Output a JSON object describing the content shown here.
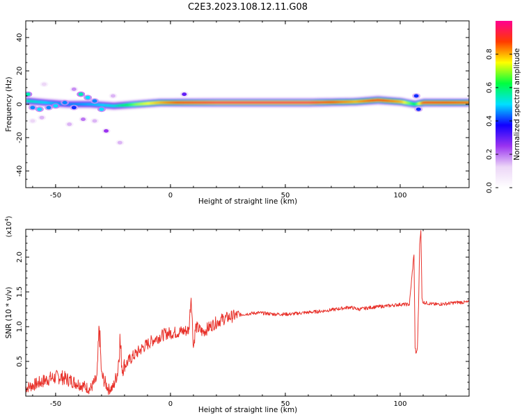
{
  "figure_title": "C2E3.2023.108.12.11.G08",
  "chart_data": [
    {
      "type": "heatmap",
      "xlabel": "Height of straight line (km)",
      "ylabel": "Frequency (Hz)",
      "xlim": [
        -63,
        130
      ],
      "ylim": [
        -50,
        50
      ],
      "x_ticks": [
        -50,
        0,
        50,
        100
      ],
      "y_ticks": [
        -40,
        -20,
        0,
        20,
        40
      ],
      "colorbar": {
        "label": "Normalized spectral amplitude",
        "range": [
          0,
          1
        ],
        "ticks": [
          0.0,
          0.2,
          0.4,
          0.6,
          0.8
        ],
        "colors": [
          "#ffffff",
          "#ecd6f7",
          "#9a33f0",
          "#1100ff",
          "#00e0ff",
          "#00ff40",
          "#ffff00",
          "#ff3b00",
          "#ff0090"
        ]
      },
      "ridge": [
        {
          "x": -63,
          "freq": 2,
          "amp": 0.55
        },
        {
          "x": -55,
          "freq": 1,
          "amp": 0.5
        },
        {
          "x": -45,
          "freq": 0,
          "amp": 0.45
        },
        {
          "x": -35,
          "freq": 0,
          "amp": 0.48
        },
        {
          "x": -25,
          "freq": -1,
          "amp": 0.52
        },
        {
          "x": -15,
          "freq": 0,
          "amp": 0.7
        },
        {
          "x": -5,
          "freq": 1,
          "amp": 0.8
        },
        {
          "x": 5,
          "freq": 1,
          "amp": 0.9
        },
        {
          "x": 20,
          "freq": 1,
          "amp": 0.95
        },
        {
          "x": 40,
          "freq": 1,
          "amp": 0.95
        },
        {
          "x": 60,
          "freq": 1,
          "amp": 0.95
        },
        {
          "x": 80,
          "freq": 1.5,
          "amp": 0.8
        },
        {
          "x": 90,
          "freq": 2.5,
          "amp": 0.9
        },
        {
          "x": 100,
          "freq": 1.5,
          "amp": 0.8
        },
        {
          "x": 106,
          "freq": 0,
          "amp": 0.6
        },
        {
          "x": 110,
          "freq": 1,
          "amp": 0.9
        },
        {
          "x": 130,
          "freq": 1,
          "amp": 0.85
        }
      ],
      "blobs": [
        {
          "x": -62,
          "freq": 6,
          "amp": 0.55
        },
        {
          "x": -60,
          "freq": -2,
          "amp": 0.45
        },
        {
          "x": -57,
          "freq": -3,
          "amp": 0.5
        },
        {
          "x": -53,
          "freq": -2,
          "amp": 0.45
        },
        {
          "x": -50,
          "freq": -1,
          "amp": 0.5
        },
        {
          "x": -46,
          "freq": 1,
          "amp": 0.45
        },
        {
          "x": -42,
          "freq": -2,
          "amp": 0.4
        },
        {
          "x": -39,
          "freq": 6,
          "amp": 0.55
        },
        {
          "x": -36,
          "freq": 4,
          "amp": 0.5
        },
        {
          "x": -33,
          "freq": 2,
          "amp": 0.45
        },
        {
          "x": -30,
          "freq": -3,
          "amp": 0.5
        },
        {
          "x": -28,
          "freq": -16,
          "amp": 0.25
        },
        {
          "x": -22,
          "freq": -23,
          "amp": 0.15
        },
        {
          "x": -38,
          "freq": -9,
          "amp": 0.2
        },
        {
          "x": -44,
          "freq": -12,
          "amp": 0.15
        },
        {
          "x": -33,
          "freq": -10,
          "amp": 0.15
        },
        {
          "x": -56,
          "freq": -8,
          "amp": 0.15
        },
        {
          "x": -60,
          "freq": -10,
          "amp": 0.12
        },
        {
          "x": -55,
          "freq": 12,
          "amp": 0.12
        },
        {
          "x": -25,
          "freq": 5,
          "amp": 0.15
        },
        {
          "x": -42,
          "freq": 9,
          "amp": 0.18
        },
        {
          "x": 6,
          "freq": 6,
          "amp": 0.3
        },
        {
          "x": 107,
          "freq": 5,
          "amp": 0.4
        },
        {
          "x": 108,
          "freq": -3,
          "amp": 0.4
        }
      ]
    },
    {
      "type": "line",
      "xlabel": "Height of straight line (km)",
      "ylabel": "SNR (10 * v/v)",
      "y_multiplier_label": "(x10",
      "y_multiplier_exp": "4",
      "y_multiplier_close": ")",
      "xlim": [
        -63,
        130
      ],
      "ylim": [
        0,
        2.4
      ],
      "x_ticks": [
        -50,
        0,
        50,
        100
      ],
      "y_ticks": [
        0.5,
        1.0,
        1.5,
        2.0
      ],
      "color": "#e8312a",
      "series": [
        {
          "x": [
            -63,
            -58,
            -53,
            -48,
            -43,
            -38,
            -35,
            -32,
            -31,
            -30,
            -27,
            -25,
            -23,
            -22,
            -21,
            -17,
            -12,
            -7,
            -2,
            3,
            8,
            9,
            10,
            11,
            14,
            18,
            22,
            27,
            32,
            38,
            45,
            52,
            58,
            65,
            72,
            78,
            82,
            88,
            95,
            100,
            104,
            106,
            106.5,
            107,
            107.5,
            108,
            108.5,
            109,
            109.5,
            110,
            115,
            120,
            125,
            130
          ],
          "y": [
            0.12,
            0.18,
            0.25,
            0.28,
            0.22,
            0.15,
            0.1,
            0.25,
            1.0,
            0.3,
            0.1,
            0.12,
            0.35,
            0.8,
            0.4,
            0.55,
            0.7,
            0.82,
            0.9,
            0.92,
            0.95,
            1.45,
            0.7,
            1.0,
            0.92,
            1.02,
            1.1,
            1.15,
            1.18,
            1.2,
            1.18,
            1.18,
            1.2,
            1.22,
            1.25,
            1.28,
            1.25,
            1.28,
            1.3,
            1.32,
            1.32,
            2.05,
            0.7,
            0.6,
            0.7,
            1.3,
            2.2,
            2.4,
            1.4,
            1.35,
            1.32,
            1.33,
            1.35,
            1.35
          ]
        }
      ]
    }
  ]
}
